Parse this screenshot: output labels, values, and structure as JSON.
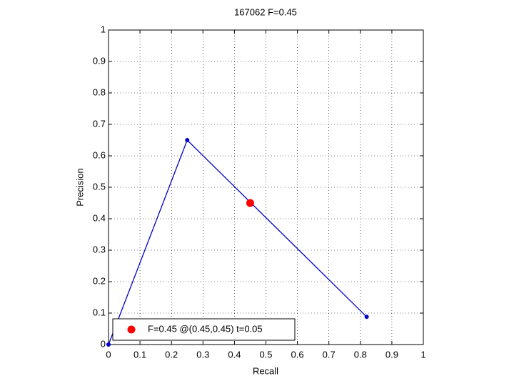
{
  "chart_data": {
    "type": "line",
    "title": "167062 F=0.45",
    "x_label": "Recall",
    "y_label": "Precision",
    "series": [
      {
        "color": "#0000cc",
        "x": [
          0,
          0.25,
          0.82
        ],
        "y": [
          0,
          0.65,
          0.088
        ]
      },
      {
        "name": "F=0.45 @(0.45,0.45) t=0.05",
        "color": "#ff0000",
        "x": [
          0.45
        ],
        "y": [
          0.45
        ]
      }
    ],
    "xlim": [
      0,
      1
    ],
    "ylim": [
      0,
      1
    ],
    "xticks": [
      0,
      0.1,
      0.2,
      0.3,
      0.4,
      0.5,
      0.6,
      0.7,
      0.8,
      0.9,
      1
    ],
    "yticks": [
      0,
      0.1,
      0.2,
      0.3,
      0.4,
      0.5,
      0.6,
      0.7,
      0.8,
      0.9,
      1
    ],
    "grid": true,
    "legend": "lower left"
  }
}
